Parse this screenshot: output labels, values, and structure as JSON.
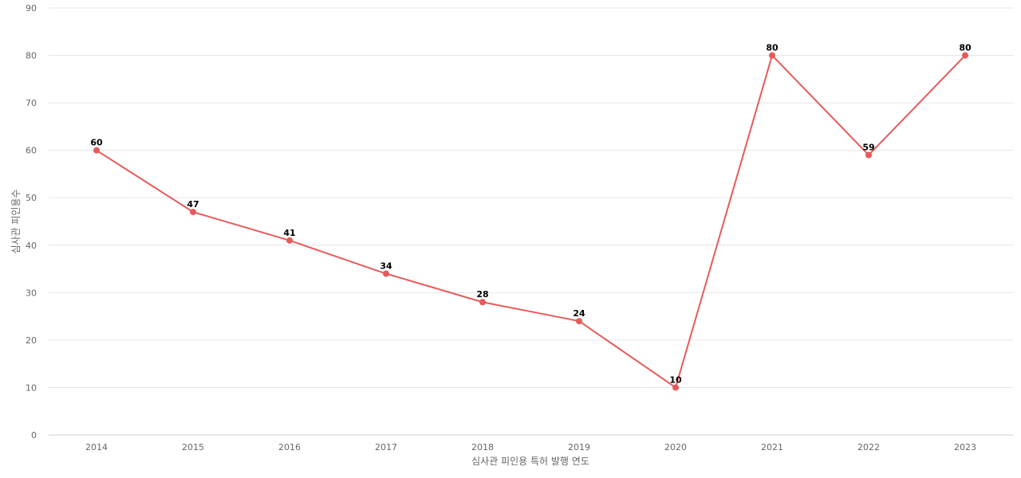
{
  "chart_data": {
    "type": "line",
    "x": [
      "2014",
      "2015",
      "2016",
      "2017",
      "2018",
      "2019",
      "2020",
      "2021",
      "2022",
      "2023"
    ],
    "series": [
      {
        "values": [
          60,
          47,
          41,
          34,
          28,
          24,
          10,
          80,
          59,
          80
        ]
      }
    ],
    "xlabel": "심사관 피인용 특허 발행 연도",
    "ylabel": "심사관 피인용수",
    "ylim": [
      0,
      90
    ],
    "yticks": [
      0,
      10,
      20,
      30,
      40,
      50,
      60,
      70,
      80,
      90
    ],
    "grid": true,
    "legend": "none",
    "color": "#e85a5a"
  }
}
